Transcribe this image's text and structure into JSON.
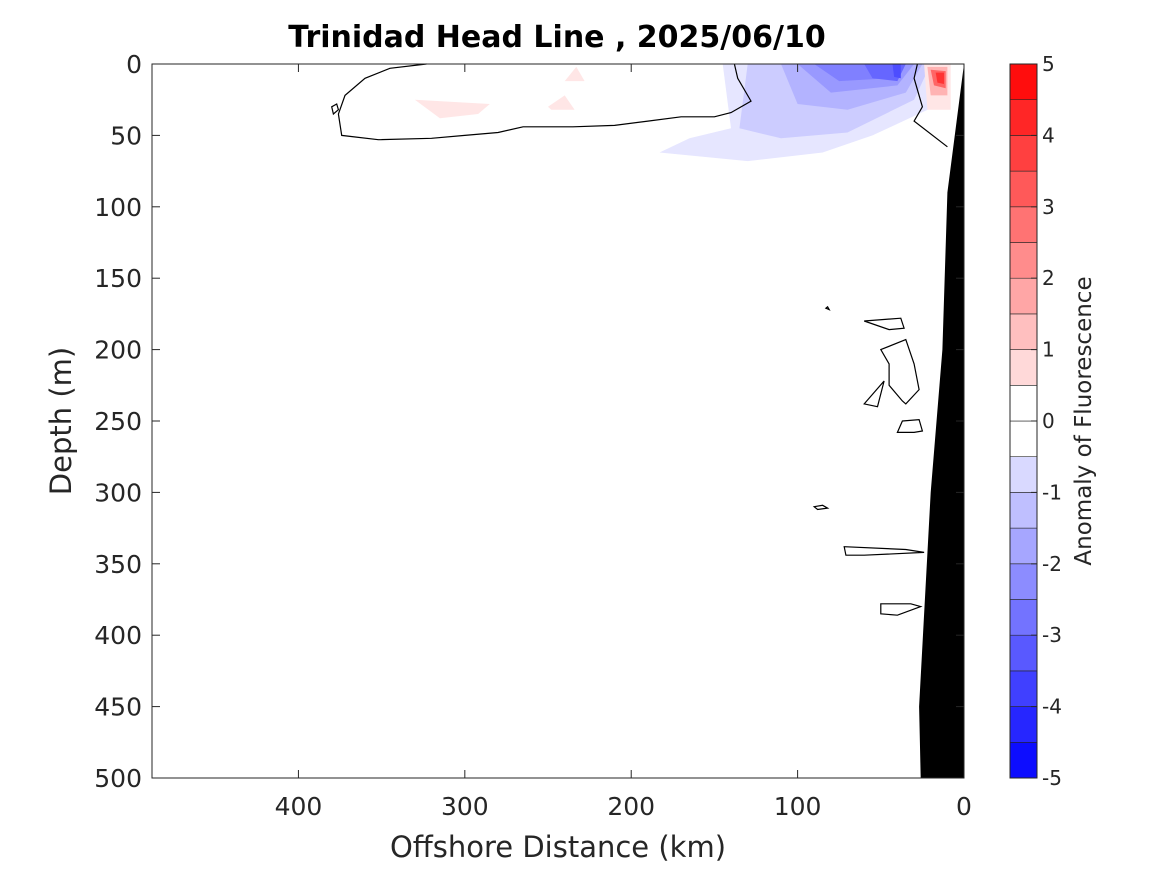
{
  "chart_data": {
    "type": "contour",
    "title": "Trinidad Head Line , 2025/06/10",
    "xlabel": "Offshore Distance (km)",
    "ylabel": "Depth (m)",
    "xlim": [
      488,
      0
    ],
    "xdirection": "reversed",
    "ylim": [
      0,
      500
    ],
    "ydirection": "reversed",
    "xticks": [
      400,
      300,
      200,
      100,
      0
    ],
    "yticks": [
      0,
      50,
      100,
      150,
      200,
      250,
      300,
      350,
      400,
      450,
      500
    ],
    "colorbar": {
      "label": "Anomaly of Fluorescence",
      "range": [
        -5,
        5
      ],
      "ticks": [
        5,
        4,
        3,
        2,
        1,
        0,
        -1,
        -2,
        -3,
        -4,
        -5
      ],
      "levels": [
        -5,
        -4.5,
        -4,
        -3.5,
        -3,
        -2.5,
        -2,
        -1.5,
        -1,
        -0.5,
        0,
        0.5,
        1,
        1.5,
        2,
        2.5,
        3,
        3.5,
        4,
        4.5,
        5
      ],
      "min_color": "#0000ff",
      "mid_color": "#ffffff",
      "max_color": "#ff0000"
    },
    "bathymetry": {
      "color": "#000000",
      "points": [
        [
          0,
          0
        ],
        [
          10,
          90
        ],
        [
          13,
          200
        ],
        [
          20,
          300
        ],
        [
          27,
          450
        ],
        [
          26,
          500
        ],
        [
          0,
          500
        ]
      ]
    },
    "filled_regions": [
      {
        "anomaly": -0.5,
        "points": [
          [
            145,
            0
          ],
          [
            10,
            0
          ],
          [
            18,
            30
          ],
          [
            55,
            50
          ],
          [
            85,
            62
          ],
          [
            130,
            68
          ],
          [
            183,
            62
          ],
          [
            165,
            52
          ],
          [
            140,
            45
          ]
        ]
      },
      {
        "anomaly": -1.0,
        "points": [
          [
            130,
            0
          ],
          [
            20,
            0
          ],
          [
            30,
            25
          ],
          [
            70,
            48
          ],
          [
            110,
            52
          ],
          [
            135,
            45
          ]
        ]
      },
      {
        "anomaly": -1.5,
        "points": [
          [
            110,
            0
          ],
          [
            25,
            0
          ],
          [
            35,
            20
          ],
          [
            70,
            32
          ],
          [
            100,
            28
          ]
        ]
      },
      {
        "anomaly": -2.0,
        "points": [
          [
            100,
            0
          ],
          [
            30,
            0
          ],
          [
            40,
            15
          ],
          [
            80,
            20
          ]
        ]
      },
      {
        "anomaly": -2.5,
        "points": [
          [
            90,
            0
          ],
          [
            35,
            0
          ],
          [
            45,
            10
          ],
          [
            75,
            12
          ]
        ]
      },
      {
        "anomaly": -3.0,
        "points": [
          [
            60,
            0
          ],
          [
            35,
            0
          ],
          [
            40,
            12
          ],
          [
            55,
            10
          ]
        ]
      },
      {
        "anomaly": -3.5,
        "points": [
          [
            43,
            0
          ],
          [
            38,
            0
          ],
          [
            38,
            10
          ],
          [
            42,
            9
          ]
        ]
      },
      {
        "anomaly": 0.5,
        "points": [
          [
            330,
            25
          ],
          [
            285,
            28
          ],
          [
            292,
            35
          ],
          [
            315,
            38
          ]
        ]
      },
      {
        "anomaly": 0.5,
        "points": [
          [
            240,
            22
          ],
          [
            250,
            30
          ],
          [
            248,
            32
          ],
          [
            234,
            32
          ]
        ]
      },
      {
        "anomaly": 0.5,
        "points": [
          [
            233,
            2
          ],
          [
            228,
            12
          ],
          [
            240,
            12
          ]
        ]
      },
      {
        "anomaly": 0.5,
        "points": [
          [
            24,
            0
          ],
          [
            8,
            0
          ],
          [
            8,
            32
          ],
          [
            22,
            32
          ]
        ]
      },
      {
        "anomaly": 1.5,
        "points": [
          [
            22,
            2
          ],
          [
            10,
            2
          ],
          [
            10,
            22
          ],
          [
            20,
            22
          ]
        ]
      },
      {
        "anomaly": 3.0,
        "points": [
          [
            20,
            4
          ],
          [
            11,
            5
          ],
          [
            11,
            17
          ],
          [
            18,
            15
          ]
        ]
      },
      {
        "anomaly": 4.0,
        "points": [
          [
            17,
            6
          ],
          [
            12,
            6
          ],
          [
            12,
            14
          ],
          [
            16,
            13
          ]
        ]
      }
    ],
    "zero_contours": [
      {
        "closed": false,
        "points": [
          [
            323,
            0
          ],
          [
            345,
            3
          ],
          [
            360,
            10
          ],
          [
            372,
            22
          ],
          [
            376,
            35
          ],
          [
            374,
            50
          ],
          [
            352,
            53
          ],
          [
            320,
            52
          ],
          [
            300,
            50
          ],
          [
            280,
            48
          ],
          [
            265,
            44
          ],
          [
            250,
            44
          ],
          [
            235,
            44
          ],
          [
            210,
            43
          ],
          [
            190,
            40
          ],
          [
            170,
            37
          ],
          [
            150,
            37
          ],
          [
            140,
            34
          ],
          [
            128,
            26
          ],
          [
            136,
            10
          ],
          [
            138,
            0
          ]
        ]
      },
      {
        "closed": false,
        "points": [
          [
            28,
            0
          ],
          [
            30,
            10
          ],
          [
            25,
            30
          ],
          [
            30,
            40
          ],
          [
            10,
            58
          ]
        ]
      },
      {
        "closed": true,
        "points": [
          [
            380,
            30
          ],
          [
            377,
            28
          ],
          [
            376,
            32
          ],
          [
            379,
            35
          ]
        ]
      },
      {
        "closed": true,
        "points": [
          [
            82,
            170
          ],
          [
            81,
            172
          ],
          [
            83,
            171
          ]
        ]
      },
      {
        "closed": true,
        "points": [
          [
            60,
            180
          ],
          [
            38,
            178
          ],
          [
            36,
            185
          ],
          [
            45,
            186
          ]
        ]
      },
      {
        "closed": true,
        "points": [
          [
            50,
            200
          ],
          [
            35,
            193
          ],
          [
            30,
            210
          ],
          [
            27,
            228
          ],
          [
            35,
            238
          ],
          [
            37,
            236
          ],
          [
            45,
            225
          ],
          [
            45,
            210
          ]
        ]
      },
      {
        "closed": true,
        "points": [
          [
            60,
            238
          ],
          [
            48,
            222
          ],
          [
            52,
            240
          ]
        ]
      },
      {
        "closed": true,
        "points": [
          [
            37,
            250
          ],
          [
            27,
            249
          ],
          [
            25,
            257
          ],
          [
            30,
            258
          ],
          [
            40,
            258
          ]
        ]
      },
      {
        "closed": true,
        "points": [
          [
            90,
            310
          ],
          [
            85,
            309
          ],
          [
            82,
            311
          ],
          [
            88,
            312
          ]
        ]
      },
      {
        "closed": true,
        "points": [
          [
            72,
            338
          ],
          [
            35,
            340
          ],
          [
            24,
            342
          ],
          [
            60,
            344
          ],
          [
            71,
            344
          ]
        ]
      },
      {
        "closed": true,
        "points": [
          [
            50,
            378
          ],
          [
            32,
            378
          ],
          [
            26,
            380
          ],
          [
            40,
            386
          ],
          [
            50,
            385
          ]
        ]
      }
    ]
  }
}
